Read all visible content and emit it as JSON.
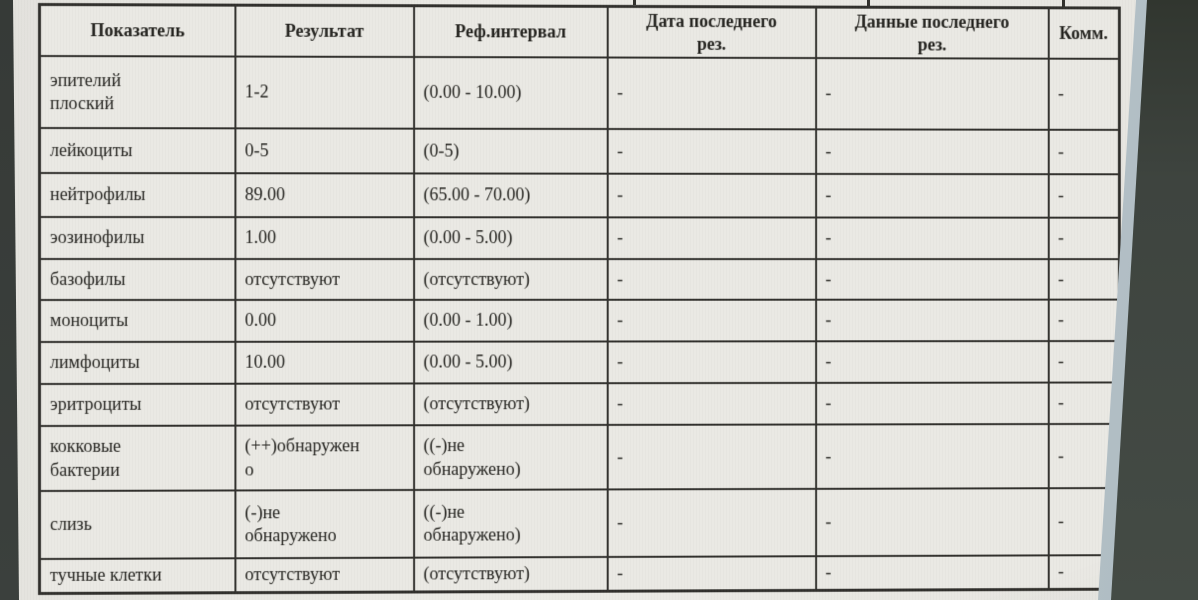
{
  "colors": {
    "screen_bg": "#eae9e4",
    "grid_line": "#2f2e2a",
    "text": "#21201c",
    "bezel_left": "#3b403d",
    "bezel_right": "#3e443f",
    "edge_highlight": "#d3dbdc"
  },
  "table": {
    "columns": [
      {
        "key": "indicator",
        "label": "Показатель"
      },
      {
        "key": "result",
        "label": "Результат"
      },
      {
        "key": "ref",
        "label": "Реф.интервал"
      },
      {
        "key": "last_date",
        "label": "Дата последнего\nрез."
      },
      {
        "key": "last_data",
        "label": "Данные последнего\nрез."
      },
      {
        "key": "comment",
        "label": "Комм."
      }
    ],
    "rows": [
      {
        "indicator": "эпителий\nплоский",
        "result": "1-2",
        "ref": "(0.00 - 10.00)",
        "last_date": "-",
        "last_data": "-",
        "comment": "-"
      },
      {
        "indicator": "лейкоциты",
        "result": "0-5",
        "ref": "(0-5)",
        "last_date": "-",
        "last_data": "-",
        "comment": "-"
      },
      {
        "indicator": "нейтрофилы",
        "result": "89.00",
        "ref": "(65.00 - 70.00)",
        "last_date": "-",
        "last_data": "-",
        "comment": "-"
      },
      {
        "indicator": "эозинофилы",
        "result": "1.00",
        "ref": "(0.00 - 5.00)",
        "last_date": "-",
        "last_data": "-",
        "comment": "-"
      },
      {
        "indicator": "базофилы",
        "result": "отсутствуют",
        "ref": "(отсутствуют)",
        "last_date": "-",
        "last_data": "-",
        "comment": "-"
      },
      {
        "indicator": "моноциты",
        "result": "0.00",
        "ref": "(0.00 - 1.00)",
        "last_date": "-",
        "last_data": "-",
        "comment": "-"
      },
      {
        "indicator": "лимфоциты",
        "result": "10.00",
        "ref": "(0.00 - 5.00)",
        "last_date": "-",
        "last_data": "-",
        "comment": "-"
      },
      {
        "indicator": "эритроциты",
        "result": "отсутствуют",
        "ref": "(отсутствуют)",
        "last_date": "-",
        "last_data": "-",
        "comment": "-"
      },
      {
        "indicator": "кокковые\nбактерии",
        "result": "(++)обнаружен\nо",
        "ref": "((-)не\nобнаружено)",
        "last_date": "-",
        "last_data": "-",
        "comment": "-"
      },
      {
        "indicator": "слизь",
        "result": "(-)не\nобнаружено",
        "ref": "((-)не\nобнаружено)",
        "last_date": "-",
        "last_data": "-",
        "comment": "-"
      },
      {
        "indicator": "тучные клетки",
        "result": "отсутствуют",
        "ref": "(отсутствуют)",
        "last_date": "-",
        "last_data": "-",
        "comment": "-"
      }
    ]
  }
}
